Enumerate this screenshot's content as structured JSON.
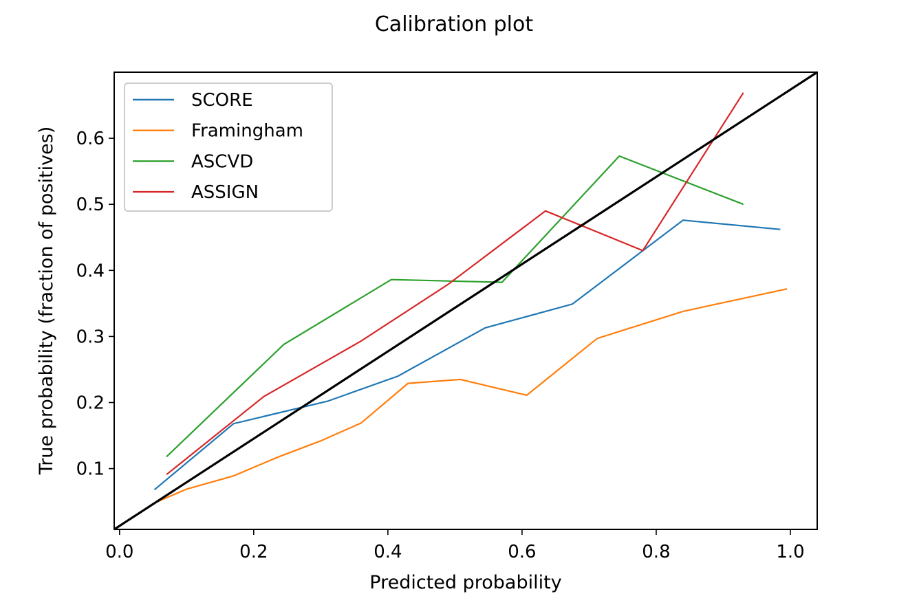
{
  "chart_data": {
    "type": "line",
    "title": "Calibration plot",
    "xlabel": "Predicted probability",
    "ylabel": "True probability (fraction of positives)",
    "xlim": [
      -0.008,
      1.04
    ],
    "ylim": [
      0.008,
      0.7
    ],
    "xticks": [
      0.0,
      0.2,
      0.4,
      0.6,
      0.8,
      1.0
    ],
    "xtick_labels": [
      "0.0",
      "0.2",
      "0.4",
      "0.6",
      "0.8",
      "1.0"
    ],
    "yticks": [
      0.1,
      0.2,
      0.3,
      0.4,
      0.5,
      0.6
    ],
    "ytick_labels": [
      "0.1",
      "0.2",
      "0.3",
      "0.4",
      "0.5",
      "0.6"
    ],
    "grid": false,
    "legend_position": "top-left",
    "reference_line": {
      "x": [
        -0.008,
        1.04
      ],
      "y": [
        0.008,
        0.7
      ],
      "color": "#000000"
    },
    "series": [
      {
        "name": "SCORE",
        "color": "#1f77b4",
        "x": [
          0.052,
          0.17,
          0.31,
          0.415,
          0.545,
          0.675,
          0.84,
          0.985
        ],
        "y": [
          0.068,
          0.168,
          0.202,
          0.24,
          0.313,
          0.349,
          0.476,
          0.462
        ]
      },
      {
        "name": "Framingham",
        "color": "#ff7f0e",
        "x": [
          0.052,
          0.1,
          0.17,
          0.235,
          0.3,
          0.36,
          0.43,
          0.508,
          0.607,
          0.712,
          0.84,
          0.995
        ],
        "y": [
          0.048,
          0.069,
          0.089,
          0.117,
          0.142,
          0.169,
          0.229,
          0.235,
          0.211,
          0.297,
          0.338,
          0.372
        ]
      },
      {
        "name": "ASCVD",
        "color": "#2ca02c",
        "x": [
          0.07,
          0.245,
          0.405,
          0.57,
          0.745,
          0.93
        ],
        "y": [
          0.118,
          0.288,
          0.386,
          0.382,
          0.573,
          0.5
        ]
      },
      {
        "name": "ASSIGN",
        "color": "#d62728",
        "x": [
          0.07,
          0.215,
          0.36,
          0.49,
          0.635,
          0.78,
          0.93
        ],
        "y": [
          0.091,
          0.209,
          0.293,
          0.379,
          0.49,
          0.43,
          0.669
        ]
      }
    ]
  }
}
